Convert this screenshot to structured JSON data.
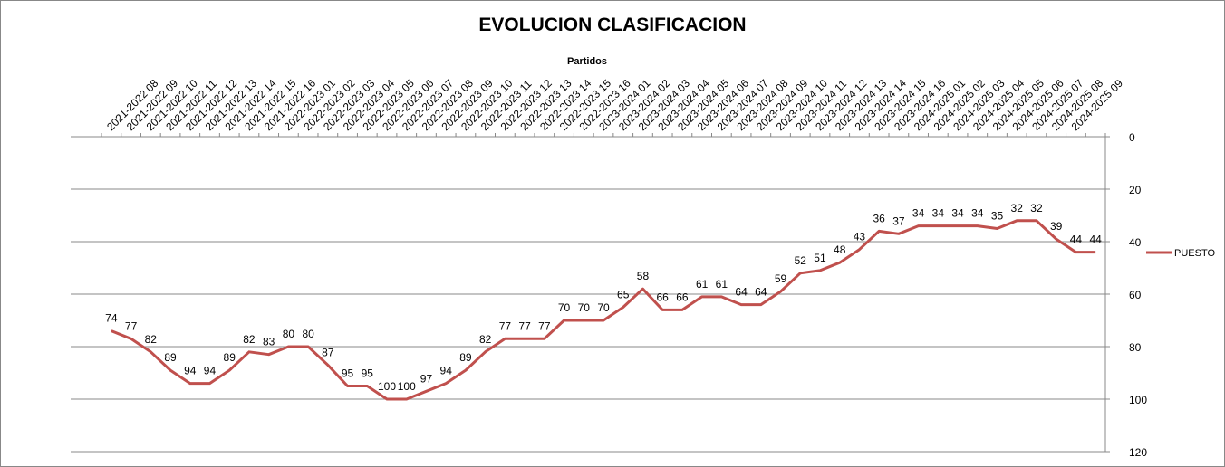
{
  "chart_data": {
    "type": "line",
    "title": "EVOLUCION CLASIFICACION",
    "x_label": "Partidos",
    "categories": [
      "2021-2022 08",
      "2021-2022 09",
      "2021-2022 10",
      "2021-2022 11",
      "2021-2022 12",
      "2021-2022 13",
      "2021-2022 14",
      "2021-2022 15",
      "2021-2022 16",
      "2022-2023 01",
      "2022-2023 02",
      "2022-2023 03",
      "2022-2023 04",
      "2022-2023 05",
      "2022-2023 06",
      "2022-2023 07",
      "2022-2023 08",
      "2022-2023 09",
      "2022-2023 10",
      "2022-2023 11",
      "2022-2023 12",
      "2022-2023 13",
      "2022-2023 14",
      "2022-2023 15",
      "2022-2023 16",
      "2023-2024 01",
      "2023-2024 02",
      "2023-2024 03",
      "2023-2024 04",
      "2023-2024 05",
      "2023-2024 06",
      "2023-2024 07",
      "2023-2024 08",
      "2023-2024 09",
      "2023-2024 10",
      "2023-2024 11",
      "2023-2024 12",
      "2023-2024 13",
      "2023-2024 14",
      "2023-2024 15",
      "2023-2024 16",
      "2024-2025 01",
      "2024-2025 02",
      "2024-2025 03",
      "2024-2025 04",
      "2024-2025 05",
      "2024-2025 06",
      "2024-2025 07",
      "2024-2025 08",
      "2024-2025 09",
      null
    ],
    "series": [
      {
        "name": "PUESTO",
        "color": "#c0504d",
        "values": [
          74,
          77,
          82,
          89,
          94,
          94,
          89,
          82,
          83,
          80,
          80,
          87,
          95,
          95,
          100,
          100,
          97,
          94,
          89,
          82,
          77,
          77,
          77,
          70,
          70,
          70,
          65,
          58,
          66,
          66,
          61,
          61,
          64,
          64,
          59,
          52,
          51,
          48,
          43,
          36,
          37,
          34,
          34,
          34,
          34,
          35,
          32,
          32,
          39,
          44,
          44
        ]
      }
    ],
    "ylim": [
      0,
      120
    ],
    "yticks": [
      0,
      20,
      40,
      60,
      80,
      100,
      120
    ],
    "y_reversed": true,
    "grid": true,
    "legend": "right"
  }
}
